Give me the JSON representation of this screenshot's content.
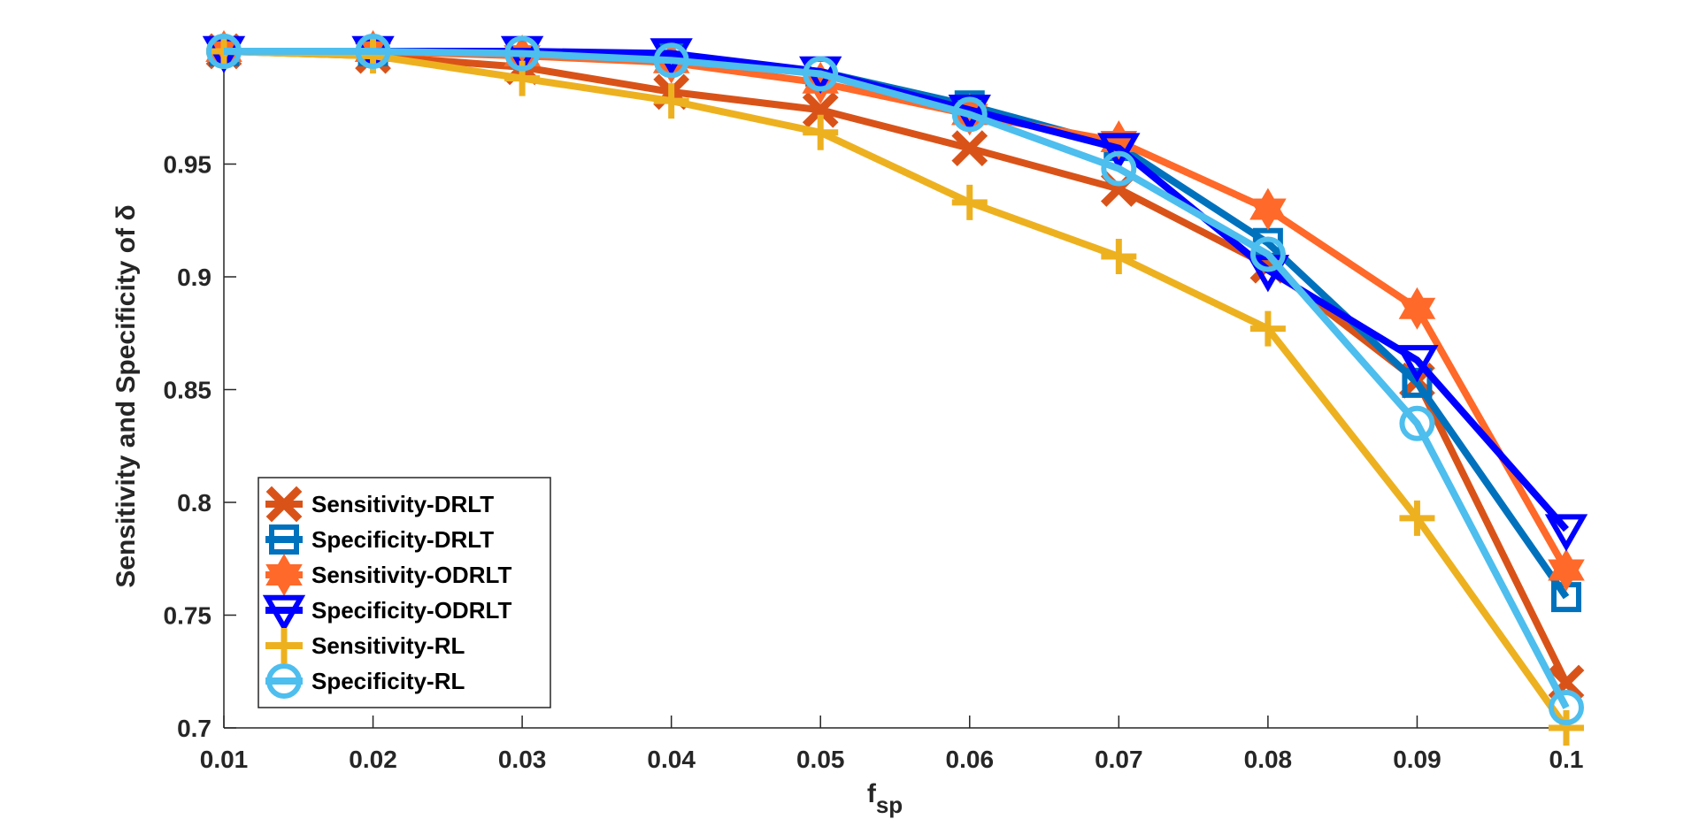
{
  "chart_data": {
    "type": "line",
    "title": "",
    "xlabel": "f",
    "xlabel_subscript": "sp",
    "ylabel": "Sensitivity and Specificity of δ",
    "x": [
      0.01,
      0.02,
      0.03,
      0.04,
      0.05,
      0.06,
      0.07,
      0.08,
      0.09,
      0.1
    ],
    "x_tick_labels": [
      "0.01",
      "0.02",
      "0.03",
      "0.04",
      "0.05",
      "0.06",
      "0.07",
      "0.08",
      "0.09",
      "0.1"
    ],
    "xlim": [
      0.01,
      0.1
    ],
    "ylim": [
      0.7,
      1.0
    ],
    "y_ticks": [
      0.7,
      0.75,
      0.8,
      0.85,
      0.9,
      0.95
    ],
    "y_tick_labels": [
      "0.7",
      "0.75",
      "0.8",
      "0.85",
      "0.9",
      "0.95"
    ],
    "grid": false,
    "legend_position": "lower-left",
    "series": [
      {
        "name": "Sensitivity-DRLT",
        "color": "#D95319",
        "marker": "x",
        "values": [
          1.0,
          0.998,
          0.993,
          0.982,
          0.974,
          0.957,
          0.939,
          0.905,
          0.854,
          0.72
        ]
      },
      {
        "name": "Specificity-DRLT",
        "color": "#0072BD",
        "marker": "square",
        "values": [
          1.0,
          1.0,
          1.0,
          0.997,
          0.991,
          0.976,
          0.958,
          0.915,
          0.853,
          0.758
        ]
      },
      {
        "name": "Sensitivity-ODRLT",
        "color": "#FF6929",
        "marker": "hexagram",
        "values": [
          1.0,
          1.0,
          0.998,
          0.995,
          0.986,
          0.972,
          0.96,
          0.93,
          0.886,
          0.77
        ]
      },
      {
        "name": "Specificity-ODRLT",
        "color": "#0000FF",
        "marker": "triangle-down",
        "values": [
          1.0,
          1.0,
          1.0,
          0.999,
          0.991,
          0.974,
          0.957,
          0.903,
          0.863,
          0.788
        ]
      },
      {
        "name": "Sensitivity-RL",
        "color": "#EDB120",
        "marker": "plus",
        "values": [
          1.0,
          0.998,
          0.988,
          0.978,
          0.964,
          0.933,
          0.909,
          0.877,
          0.793,
          0.7
        ]
      },
      {
        "name": "Specificity-RL",
        "color": "#4DBEEE",
        "marker": "circle",
        "values": [
          1.0,
          1.0,
          0.999,
          0.996,
          0.99,
          0.972,
          0.948,
          0.91,
          0.835,
          0.709
        ]
      }
    ]
  }
}
